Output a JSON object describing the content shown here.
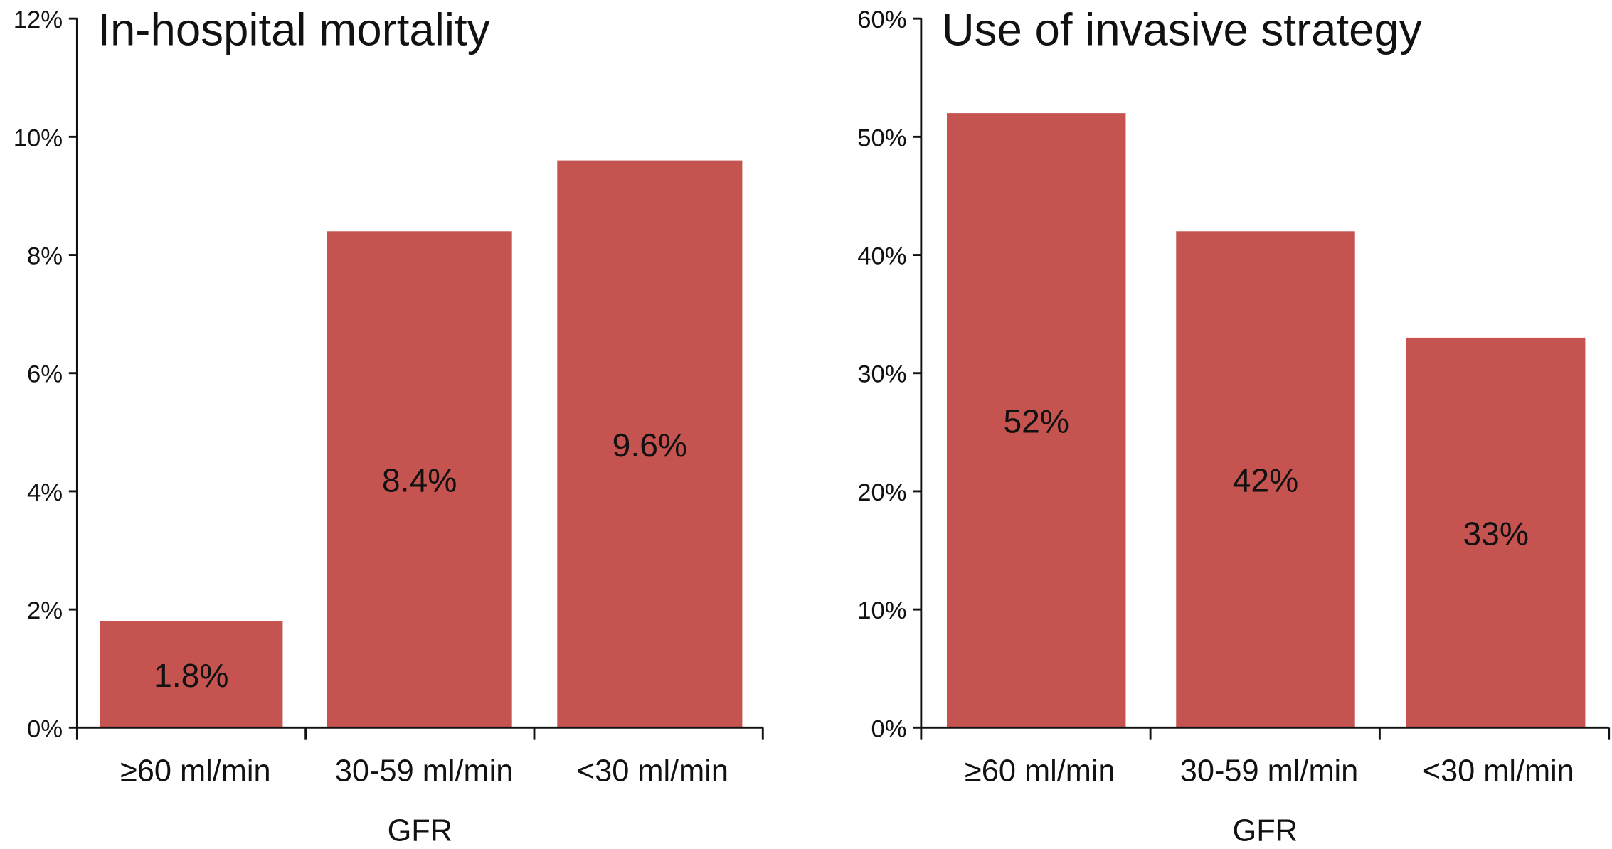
{
  "chart_data": [
    {
      "type": "bar",
      "title": "In-hospital mortality",
      "xlabel": "GFR",
      "ylabel": "",
      "categories": [
        "≥60 ml/min",
        "30-59 ml/min",
        "<30 ml/min"
      ],
      "values": [
        1.8,
        8.4,
        9.6
      ],
      "data_labels": [
        "1.8%",
        "8.4%",
        "9.6%"
      ],
      "ylim": [
        0,
        12
      ],
      "yticks": [
        0,
        2,
        4,
        6,
        8,
        10,
        12
      ],
      "ytick_labels": [
        "0%",
        "2%",
        "4%",
        "6%",
        "8%",
        "10%",
        "12%"
      ],
      "grid": false,
      "color": "#c5534f"
    },
    {
      "type": "bar",
      "title": "Use of invasive strategy",
      "xlabel": "GFR",
      "ylabel": "",
      "categories": [
        "≥60 ml/min",
        "30-59 ml/min",
        "<30 ml/min"
      ],
      "values": [
        52,
        42,
        33
      ],
      "data_labels": [
        "52%",
        "42%",
        "33%"
      ],
      "ylim": [
        0,
        60
      ],
      "yticks": [
        0,
        10,
        20,
        30,
        40,
        50,
        60
      ],
      "ytick_labels": [
        "0%",
        "10%",
        "20%",
        "30%",
        "40%",
        "50%",
        "60%"
      ],
      "grid": false,
      "color": "#c5534f"
    }
  ]
}
